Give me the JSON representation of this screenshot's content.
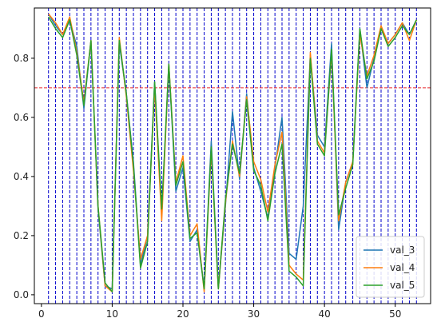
{
  "chart_data": {
    "type": "line",
    "x": [
      1,
      2,
      3,
      4,
      5,
      6,
      7,
      8,
      9,
      10,
      11,
      12,
      13,
      14,
      15,
      16,
      17,
      18,
      19,
      20,
      21,
      22,
      23,
      24,
      25,
      26,
      27,
      28,
      29,
      30,
      31,
      32,
      33,
      34,
      35,
      36,
      37,
      38,
      39,
      40,
      41,
      42,
      43,
      44,
      45,
      46,
      47,
      48,
      49,
      50,
      51,
      52,
      53
    ],
    "xlim": [
      -1,
      55
    ],
    "ylim": [
      -0.03,
      0.97
    ],
    "xticks": [
      0,
      10,
      20,
      30,
      40,
      50
    ],
    "xtick_labels": [
      "0",
      "10",
      "20",
      "30",
      "40",
      "50"
    ],
    "yticks": [
      0.0,
      0.2,
      0.4,
      0.6,
      0.8
    ],
    "ytick_labels": [
      "0.0",
      "0.2",
      "0.4",
      "0.6",
      "0.8"
    ],
    "grid": false,
    "legend_position": "lower-right",
    "vlines": {
      "x": [
        1,
        2,
        3,
        4,
        5,
        6,
        7,
        8,
        9,
        10,
        11,
        12,
        13,
        14,
        15,
        16,
        17,
        18,
        19,
        20,
        21,
        22,
        23,
        24,
        25,
        26,
        27,
        28,
        29,
        30,
        31,
        32,
        33,
        34,
        35,
        36,
        37,
        38,
        39,
        40,
        41,
        42,
        43,
        44,
        45,
        46,
        47,
        48,
        49,
        50,
        51,
        52,
        53
      ],
      "color": "#0000cc",
      "style": "dashed"
    },
    "hline": {
      "y": 0.7,
      "color": "#e8262a",
      "style": "dashed"
    },
    "series": [
      {
        "name": "val_3",
        "color": "#1f77b4",
        "values": [
          0.95,
          0.91,
          0.88,
          0.93,
          0.84,
          0.63,
          0.86,
          0.29,
          0.03,
          0.02,
          0.85,
          0.68,
          0.45,
          0.1,
          0.2,
          0.72,
          0.27,
          0.78,
          0.35,
          0.43,
          0.18,
          0.22,
          0.02,
          0.52,
          0.02,
          0.3,
          0.62,
          0.39,
          0.68,
          0.43,
          0.35,
          0.26,
          0.43,
          0.6,
          0.14,
          0.12,
          0.3,
          0.81,
          0.54,
          0.5,
          0.85,
          0.22,
          0.38,
          0.45,
          0.9,
          0.7,
          0.8,
          0.9,
          0.85,
          0.88,
          0.92,
          0.88,
          0.93
        ]
      },
      {
        "name": "val_4",
        "color": "#ff7f0e",
        "values": [
          0.95,
          0.92,
          0.88,
          0.94,
          0.82,
          0.65,
          0.86,
          0.3,
          0.03,
          0.01,
          0.87,
          0.67,
          0.42,
          0.12,
          0.2,
          0.7,
          0.25,
          0.78,
          0.38,
          0.47,
          0.2,
          0.24,
          0.01,
          0.49,
          0.02,
          0.31,
          0.52,
          0.4,
          0.67,
          0.45,
          0.39,
          0.28,
          0.44,
          0.55,
          0.1,
          0.07,
          0.05,
          0.82,
          0.52,
          0.48,
          0.82,
          0.25,
          0.38,
          0.45,
          0.88,
          0.74,
          0.81,
          0.91,
          0.85,
          0.88,
          0.92,
          0.86,
          0.93
        ]
      },
      {
        "name": "val_5",
        "color": "#2ca02c",
        "values": [
          0.94,
          0.9,
          0.87,
          0.93,
          0.81,
          0.64,
          0.86,
          0.3,
          0.04,
          0.01,
          0.86,
          0.68,
          0.44,
          0.09,
          0.18,
          0.72,
          0.29,
          0.78,
          0.37,
          0.45,
          0.19,
          0.21,
          0.02,
          0.5,
          0.02,
          0.32,
          0.51,
          0.41,
          0.66,
          0.42,
          0.37,
          0.25,
          0.41,
          0.51,
          0.08,
          0.06,
          0.03,
          0.8,
          0.51,
          0.47,
          0.83,
          0.27,
          0.36,
          0.44,
          0.9,
          0.73,
          0.79,
          0.9,
          0.84,
          0.87,
          0.91,
          0.88,
          0.93
        ]
      }
    ]
  }
}
